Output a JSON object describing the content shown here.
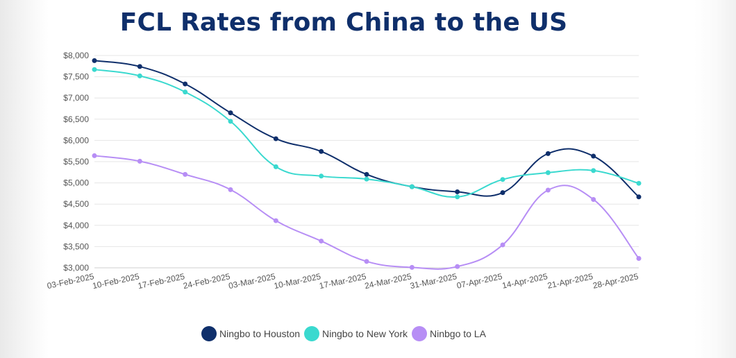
{
  "chart_data": {
    "type": "line",
    "title": "FCL Rates from China to the US",
    "xlabel": "",
    "ylabel": "",
    "ylim": [
      3000,
      8000
    ],
    "y_ticks": [
      3000,
      3500,
      4000,
      4500,
      5000,
      5500,
      6000,
      6500,
      7000,
      7500,
      8000
    ],
    "y_tick_labels": [
      "$3,000",
      "$3,500",
      "$4,000",
      "$4,500",
      "$5,000",
      "$5,500",
      "$6,000",
      "$6,500",
      "$7,000",
      "$7,500",
      "$8,000"
    ],
    "categories": [
      "03-Feb-2025",
      "10-Feb-2025",
      "17-Feb-2025",
      "24-Feb-2025",
      "03-Mar-2025",
      "10-Mar-2025",
      "17-Mar-2025",
      "24-Mar-2025",
      "31-Mar-2025",
      "07-Apr-2025",
      "14-Apr-2025",
      "21-Apr-2025",
      "28-Apr-2025"
    ],
    "series": [
      {
        "name": "Ningbo to Houston",
        "color": "#0f2f6b",
        "values": [
          7880,
          7740,
          7330,
          6650,
          6040,
          5740,
          5200,
          4910,
          4790,
          4770,
          5690,
          5630,
          4670
        ]
      },
      {
        "name": "Ningbo to New York",
        "color": "#3ad9cf",
        "values": [
          7670,
          7520,
          7140,
          6450,
          5380,
          5160,
          5090,
          4910,
          4670,
          5080,
          5240,
          5290,
          4990
        ]
      },
      {
        "name": "Ninbgo to LA",
        "color": "#b78ef5",
        "values": [
          5640,
          5510,
          5200,
          4840,
          4110,
          3630,
          3150,
          3010,
          3030,
          3540,
          4830,
          4610,
          3220
        ]
      }
    ],
    "grid": true,
    "legend": "bottom-center"
  }
}
